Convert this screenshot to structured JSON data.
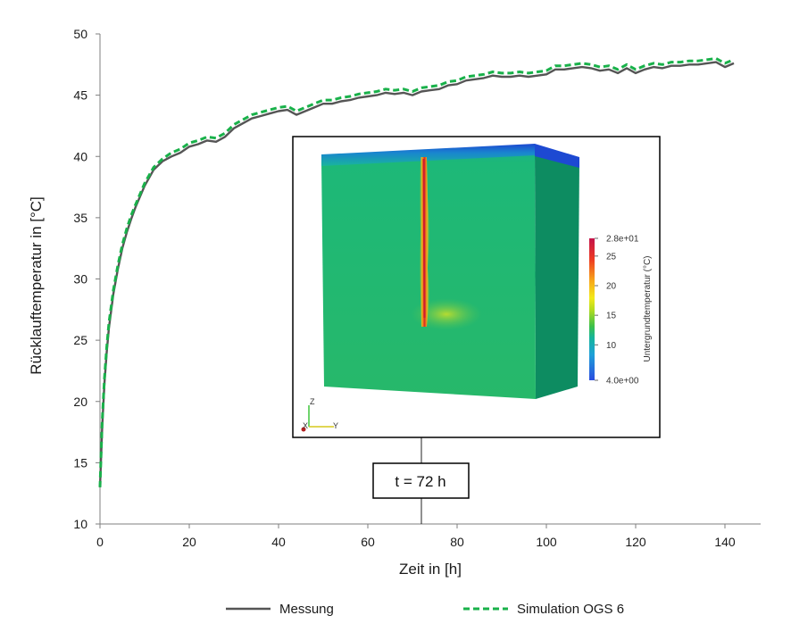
{
  "chart_data": {
    "type": "line",
    "xlabel": "Zeit in [h]",
    "ylabel": "Rücklauftemperatur in [°C]",
    "xlim": [
      0,
      148
    ],
    "ylim": [
      10,
      50
    ],
    "xticks": [
      "0",
      "20",
      "40",
      "60",
      "80",
      "100",
      "120",
      "140"
    ],
    "yticks": [
      "10",
      "15",
      "20",
      "25",
      "30",
      "35",
      "40",
      "45",
      "50"
    ],
    "grid": false,
    "legend": "bottom",
    "series": [
      {
        "name": "Messung",
        "color": "#555555",
        "style": "solid",
        "x": [
          0,
          0.5,
          1,
          1.5,
          2,
          3,
          4,
          5,
          6,
          7,
          8,
          10,
          12,
          14,
          16,
          18,
          20,
          22,
          24,
          26,
          28,
          30,
          32,
          34,
          36,
          38,
          40,
          42,
          44,
          46,
          48,
          50,
          52,
          54,
          56,
          58,
          60,
          62,
          64,
          66,
          68,
          70,
          72,
          74,
          76,
          78,
          80,
          82,
          84,
          86,
          88,
          90,
          92,
          94,
          96,
          98,
          100,
          102,
          104,
          106,
          108,
          110,
          112,
          114,
          116,
          118,
          120,
          122,
          124,
          126,
          128,
          130,
          132,
          134,
          136,
          138,
          140,
          142
        ],
        "y": [
          13.0,
          18.0,
          21.5,
          24.0,
          26.0,
          28.8,
          30.8,
          32.5,
          33.8,
          34.9,
          35.9,
          37.6,
          38.9,
          39.6,
          40.0,
          40.3,
          40.8,
          41.0,
          41.3,
          41.2,
          41.6,
          42.3,
          42.7,
          43.1,
          43.3,
          43.5,
          43.7,
          43.8,
          43.4,
          43.7,
          44.0,
          44.3,
          44.3,
          44.5,
          44.6,
          44.8,
          44.9,
          45.0,
          45.2,
          45.1,
          45.2,
          45.0,
          45.3,
          45.4,
          45.5,
          45.8,
          45.9,
          46.2,
          46.3,
          46.4,
          46.6,
          46.5,
          46.5,
          46.6,
          46.5,
          46.6,
          46.7,
          47.1,
          47.1,
          47.2,
          47.3,
          47.2,
          47.0,
          47.1,
          46.8,
          47.2,
          46.8,
          47.1,
          47.3,
          47.2,
          47.4,
          47.4,
          47.5,
          47.5,
          47.6,
          47.7,
          47.3,
          47.6
        ]
      },
      {
        "name": "Simulation OGS 6",
        "color": "#19b14a",
        "style": "dashed",
        "x": [
          0,
          0.5,
          1,
          1.5,
          2,
          3,
          4,
          5,
          6,
          7,
          8,
          10,
          12,
          14,
          16,
          18,
          20,
          22,
          24,
          26,
          28,
          30,
          32,
          34,
          36,
          38,
          40,
          42,
          44,
          46,
          48,
          50,
          52,
          54,
          56,
          58,
          60,
          62,
          64,
          66,
          68,
          70,
          72,
          74,
          76,
          78,
          80,
          82,
          84,
          86,
          88,
          90,
          92,
          94,
          96,
          98,
          100,
          102,
          104,
          106,
          108,
          110,
          112,
          114,
          116,
          118,
          120,
          122,
          124,
          126,
          128,
          130,
          132,
          134,
          136,
          138,
          140,
          142
        ],
        "y": [
          13.0,
          18.4,
          21.9,
          24.4,
          26.4,
          29.1,
          31.1,
          32.8,
          34.1,
          35.2,
          36.1,
          37.8,
          39.1,
          39.8,
          40.3,
          40.6,
          41.1,
          41.3,
          41.6,
          41.5,
          41.9,
          42.6,
          43.0,
          43.4,
          43.6,
          43.8,
          44.0,
          44.1,
          43.7,
          44.0,
          44.3,
          44.6,
          44.6,
          44.8,
          44.9,
          45.1,
          45.2,
          45.3,
          45.5,
          45.4,
          45.5,
          45.3,
          45.6,
          45.7,
          45.8,
          46.1,
          46.2,
          46.5,
          46.6,
          46.7,
          46.9,
          46.8,
          46.8,
          46.9,
          46.8,
          46.9,
          47.0,
          47.4,
          47.4,
          47.5,
          47.6,
          47.5,
          47.3,
          47.4,
          47.1,
          47.5,
          47.1,
          47.4,
          47.6,
          47.5,
          47.7,
          47.7,
          47.8,
          47.8,
          47.9,
          48.0,
          47.6,
          47.9
        ]
      }
    ],
    "annotation": {
      "label": "t = 72 h",
      "x": 72
    },
    "inset": {
      "colorbar_title": "Untergrundtemperatur (°C)",
      "colorbar_ticks": [
        "2.8e+01",
        "25",
        "20",
        "15",
        "10",
        "4.0e+00"
      ],
      "colorbar_range": [
        4,
        28
      ],
      "axes": {
        "z": "Z",
        "x": "X",
        "y": "Y"
      }
    }
  }
}
